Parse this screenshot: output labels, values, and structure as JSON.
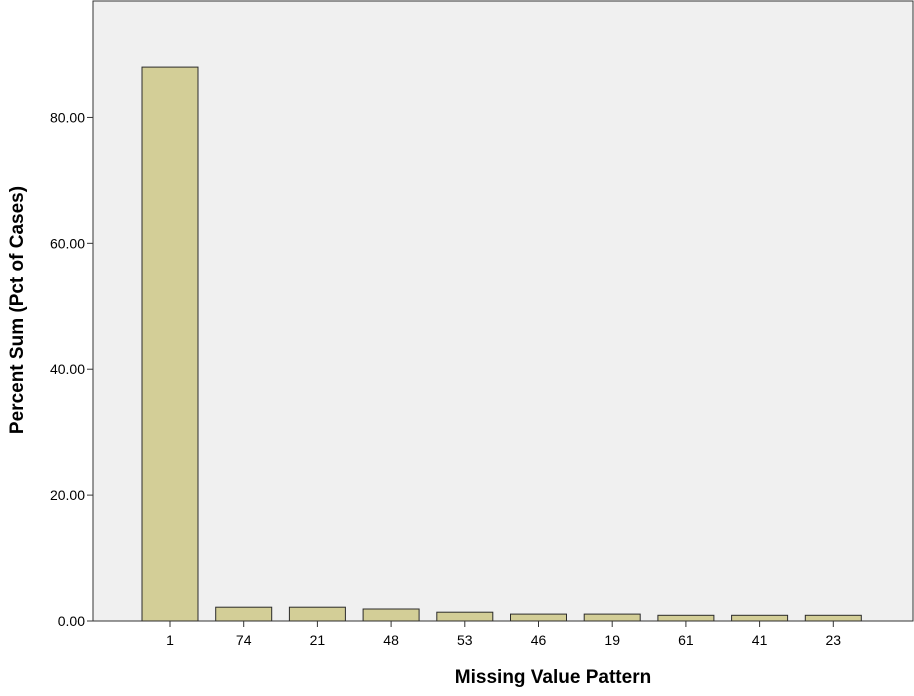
{
  "chart_data": {
    "type": "bar",
    "categories": [
      "1",
      "74",
      "21",
      "48",
      "53",
      "46",
      "19",
      "61",
      "41",
      "23"
    ],
    "values": [
      88.0,
      2.2,
      2.2,
      1.9,
      1.4,
      1.1,
      1.1,
      0.9,
      0.9,
      0.9
    ],
    "xlabel": "Missing Value Pattern",
    "ylabel": "Percent Sum (Pct of Cases)",
    "ylim": [
      0,
      98.5
    ],
    "yticks": [
      0,
      20,
      40,
      60,
      80
    ],
    "ytick_labels": [
      "0.00",
      "20.00",
      "40.00",
      "60.00",
      "80.00"
    ],
    "grid": false,
    "legend": "none",
    "colors": {
      "bar_fill": "#d3ce97",
      "bar_stroke": "#2b2b2b",
      "plot_background": "#f0f0f0",
      "axis": "#333333",
      "text": "#000000"
    }
  }
}
